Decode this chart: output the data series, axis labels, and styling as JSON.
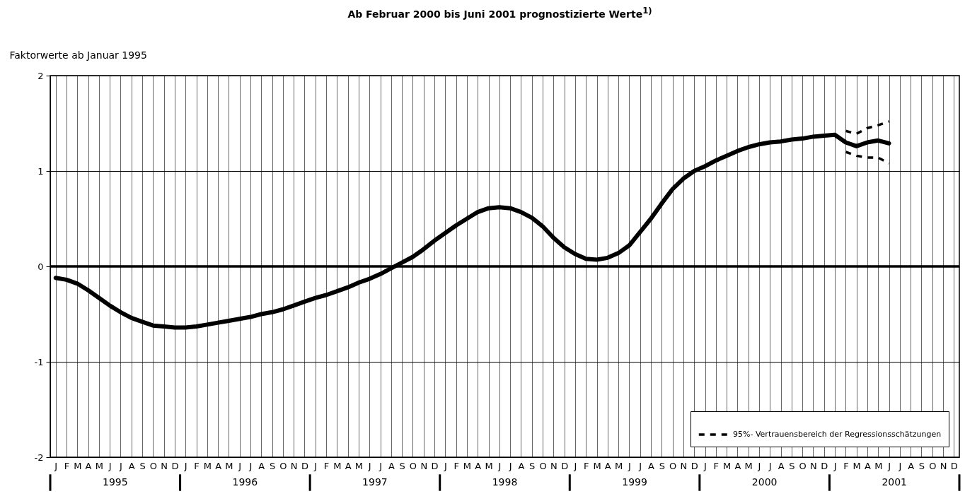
{
  "chart_data": {
    "type": "line",
    "title": "Ab Februar 2000 bis Juni 2001 prognostizierte Werte$^{1)}$",
    "ylabel": "Faktorwerte ab Januar 1995",
    "categories": [
      "J",
      "F",
      "M",
      "A",
      "M",
      "J",
      "J",
      "A",
      "S",
      "O",
      "N",
      "D",
      "J",
      "F",
      "M",
      "A",
      "M",
      "J",
      "J",
      "A",
      "S",
      "O",
      "N",
      "D",
      "J",
      "F",
      "M",
      "A",
      "M",
      "J",
      "J",
      "A",
      "S",
      "O",
      "N",
      "D",
      "J",
      "F",
      "M",
      "A",
      "M",
      "J",
      "J",
      "A",
      "S",
      "O",
      "N",
      "D",
      "J",
      "F",
      "M",
      "A",
      "M",
      "J",
      "J",
      "A",
      "S",
      "O",
      "N",
      "D",
      "J",
      "F",
      "M",
      "A",
      "M",
      "J",
      "J",
      "A",
      "S",
      "O",
      "N",
      "D",
      "J",
      "F",
      "M",
      "A",
      "M",
      "J",
      "J",
      "A",
      "S",
      "O",
      "N",
      "D"
    ],
    "series": [
      {
        "color": "#000000",
        "line_style": "solid",
        "values": [
          -0.12,
          -0.14,
          -0.18,
          -0.25,
          -0.33,
          -0.41,
          -0.48,
          -0.54,
          -0.58,
          -0.62,
          -0.63,
          -0.64,
          -0.64,
          -0.63,
          -0.61,
          -0.59,
          -0.57,
          -0.55,
          -0.53,
          -0.5,
          -0.48,
          -0.45,
          -0.41,
          -0.37,
          -0.33,
          -0.3,
          -0.26,
          -0.22,
          -0.17,
          -0.13,
          -0.08,
          -0.02,
          0.04,
          0.1,
          0.18,
          0.27,
          0.35,
          0.43,
          0.5,
          0.57,
          0.61,
          0.62,
          0.61,
          0.57,
          0.51,
          0.42,
          0.3,
          0.2,
          0.13,
          0.08,
          0.07,
          0.09,
          0.14,
          0.22,
          0.36,
          0.5,
          0.66,
          0.81,
          0.92,
          1.0,
          1.05,
          1.11,
          1.16,
          1.21,
          1.25,
          1.28,
          1.3,
          1.31,
          1.33,
          1.34,
          1.36,
          1.37,
          1.38,
          1.3,
          1.26,
          1.3,
          1.32,
          1.29,
          null,
          null,
          null,
          null,
          null,
          null
        ]
      },
      {
        "name": "95%- Vertrauensbereich der Regressionsschätzungen",
        "color": "#000000",
        "line_style": "dashed",
        "values": [
          null,
          null,
          null,
          null,
          null,
          null,
          null,
          null,
          null,
          null,
          null,
          null,
          null,
          null,
          null,
          null,
          null,
          null,
          null,
          null,
          null,
          null,
          null,
          null,
          null,
          null,
          null,
          null,
          null,
          null,
          null,
          null,
          null,
          null,
          null,
          null,
          null,
          null,
          null,
          null,
          null,
          null,
          null,
          null,
          null,
          null,
          null,
          null,
          null,
          null,
          null,
          null,
          null,
          null,
          null,
          null,
          null,
          null,
          null,
          null,
          null,
          null,
          null,
          null,
          null,
          null,
          null,
          null,
          null,
          null,
          null,
          null,
          null,
          1.42,
          1.39,
          1.45,
          1.48,
          1.52,
          null,
          null,
          null,
          null,
          null,
          null
        ]
      },
      {
        "color": "#000000",
        "line_style": "dashed",
        "values": [
          null,
          null,
          null,
          null,
          null,
          null,
          null,
          null,
          null,
          null,
          null,
          null,
          null,
          null,
          null,
          null,
          null,
          null,
          null,
          null,
          null,
          null,
          null,
          null,
          null,
          null,
          null,
          null,
          null,
          null,
          null,
          null,
          null,
          null,
          null,
          null,
          null,
          null,
          null,
          null,
          null,
          null,
          null,
          null,
          null,
          null,
          null,
          null,
          null,
          null,
          null,
          null,
          null,
          null,
          null,
          null,
          null,
          null,
          null,
          null,
          null,
          null,
          null,
          null,
          null,
          null,
          null,
          null,
          null,
          null,
          null,
          null,
          null,
          1.2,
          1.16,
          1.14,
          1.14,
          1.08,
          null,
          null,
          null,
          null,
          null,
          null
        ]
      }
    ],
    "ylim": [
      -2,
      2
    ],
    "yticks": [
      -2,
      -1,
      0,
      1,
      2
    ],
    "grid": true,
    "legend": "bottom right",
    "ref_lines": [
      {
        "axis": "y",
        "value": 0
      }
    ],
    "annotations": [
      "1995",
      "1996",
      "1997",
      "1998",
      "1999",
      "2000",
      "2001"
    ]
  }
}
